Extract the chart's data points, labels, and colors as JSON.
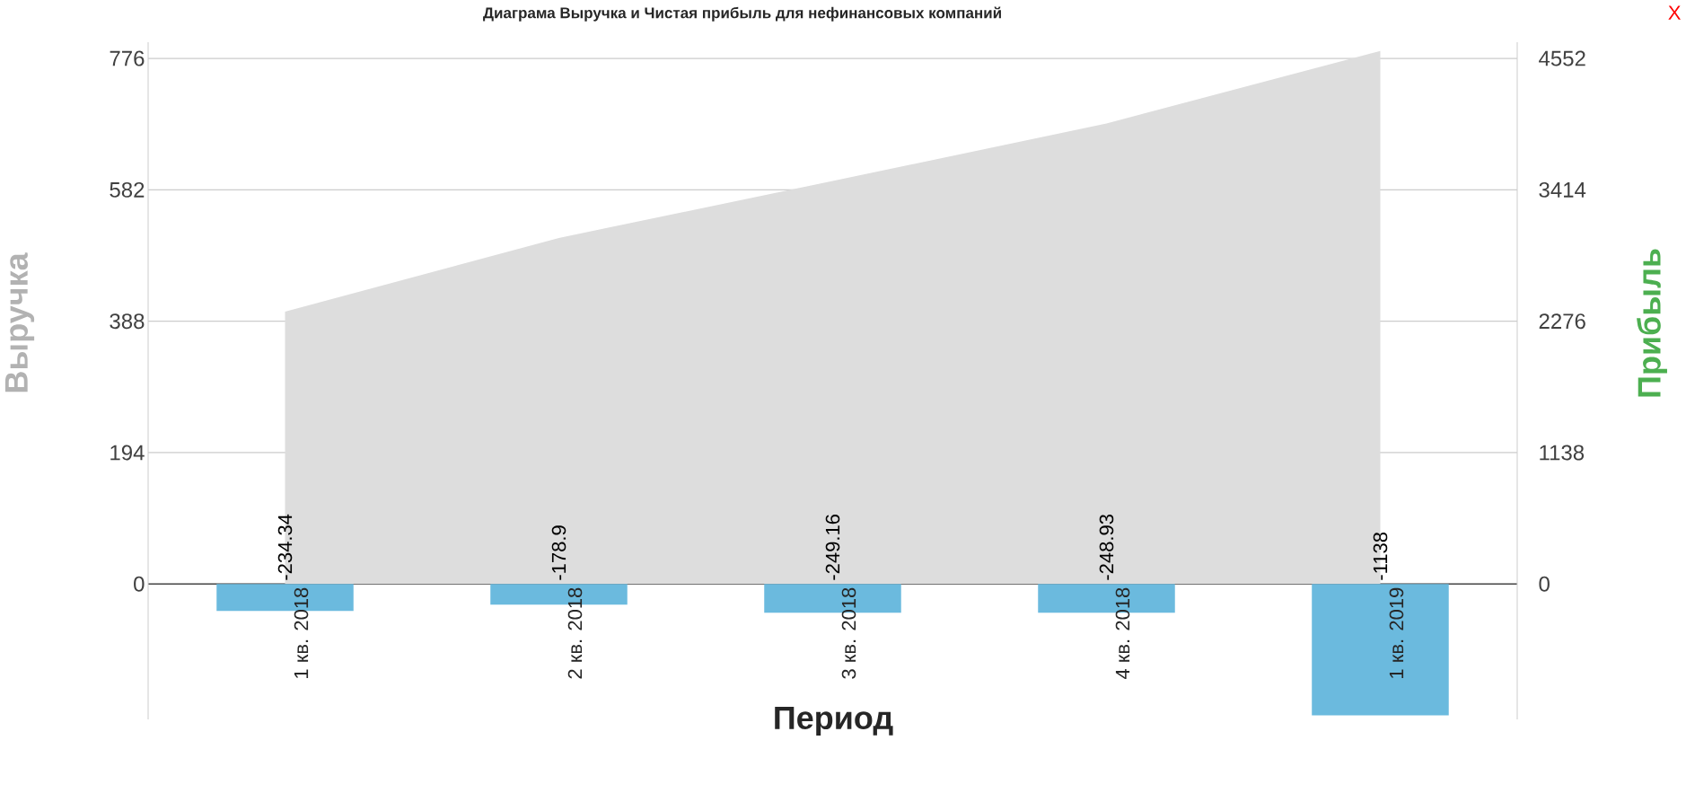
{
  "chart_data": {
    "type": "bar",
    "title": "Диаграма Выручка и Чистая прибыль для нефинансовых компаний",
    "xlabel": "Период",
    "ylabel": "Выручка",
    "y2label": "Прибыль",
    "categories": [
      "1 кв. 2018",
      "2 кв. 2018",
      "3 кв. 2018",
      "4 кв. 2018",
      "1 кв. 2019"
    ],
    "series": [
      {
        "type": "area",
        "color": "#dddddd",
        "values": [
          402,
          511,
          595,
          680,
          787
        ]
      },
      {
        "type": "bar",
        "axis": "y2",
        "color": "#6bbade",
        "values": [
          -234.34,
          -178.9,
          -249.16,
          -248.93,
          -1138
        ],
        "value_labels": [
          "-234.34",
          "-178.9",
          "-249.16",
          "-248.93",
          "-1138"
        ]
      }
    ],
    "ylim": [
      -200,
      800
    ],
    "yticks": [
      0,
      194,
      388,
      582,
      776
    ],
    "y2lim": [
      -1173.2,
      4692.8
    ],
    "y2ticks": [
      0,
      1138,
      2276,
      3414,
      4552
    ],
    "grid": "y",
    "annotations": [
      "X"
    ]
  }
}
